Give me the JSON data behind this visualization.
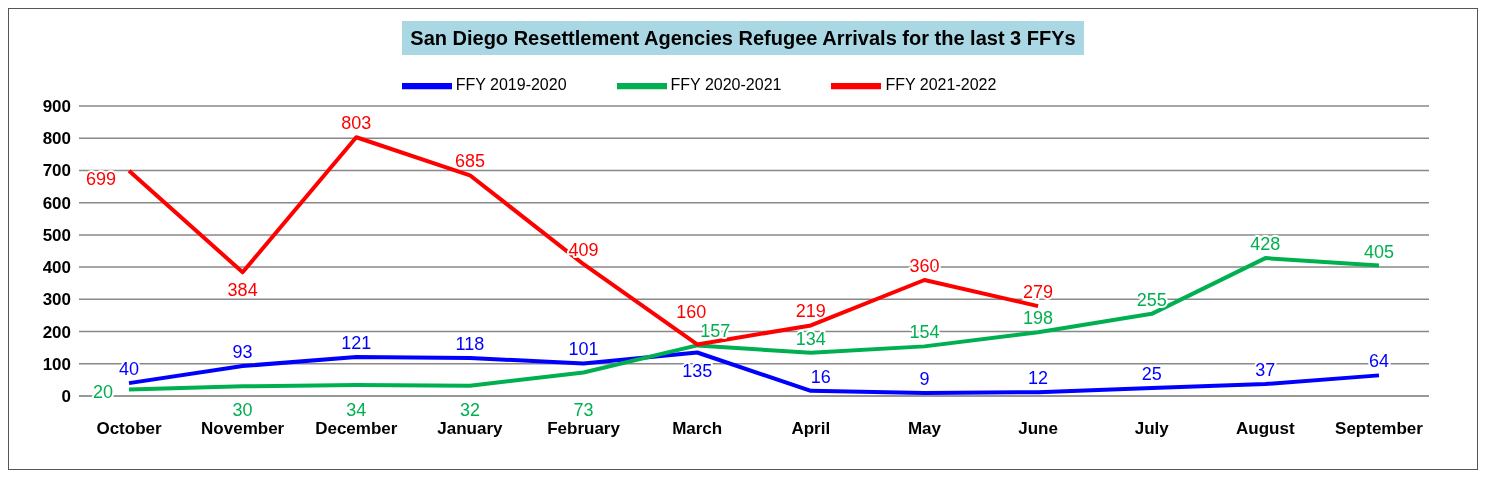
{
  "chart_data": {
    "type": "line",
    "title": "San Diego Resettlement Agencies Refugee Arrivals for the last 3 FFYs",
    "categories": [
      "October",
      "November",
      "December",
      "January",
      "February",
      "March",
      "April",
      "May",
      "June",
      "July",
      "August",
      "September"
    ],
    "series": [
      {
        "name": "FFY 2019-2020",
        "color": "#0000ff",
        "values": [
          40,
          93,
          121,
          118,
          101,
          135,
          16,
          9,
          12,
          25,
          37,
          64
        ]
      },
      {
        "name": "FFY 2020-2021",
        "color": "#00b050",
        "values": [
          20,
          30,
          34,
          32,
          73,
          157,
          134,
          154,
          198,
          255,
          428,
          405
        ]
      },
      {
        "name": "FFY 2021-2022",
        "color": "#ff0000",
        "values": [
          699,
          384,
          803,
          685,
          409,
          160,
          219,
          360,
          279,
          null,
          null,
          null
        ]
      }
    ],
    "ylim": [
      0,
      900
    ],
    "yticks": [
      0,
      100,
      200,
      300,
      400,
      500,
      600,
      700,
      800,
      900
    ],
    "grid": "y",
    "legend": "top",
    "marker": "none",
    "line_style": "solid",
    "data_labels": true
  }
}
